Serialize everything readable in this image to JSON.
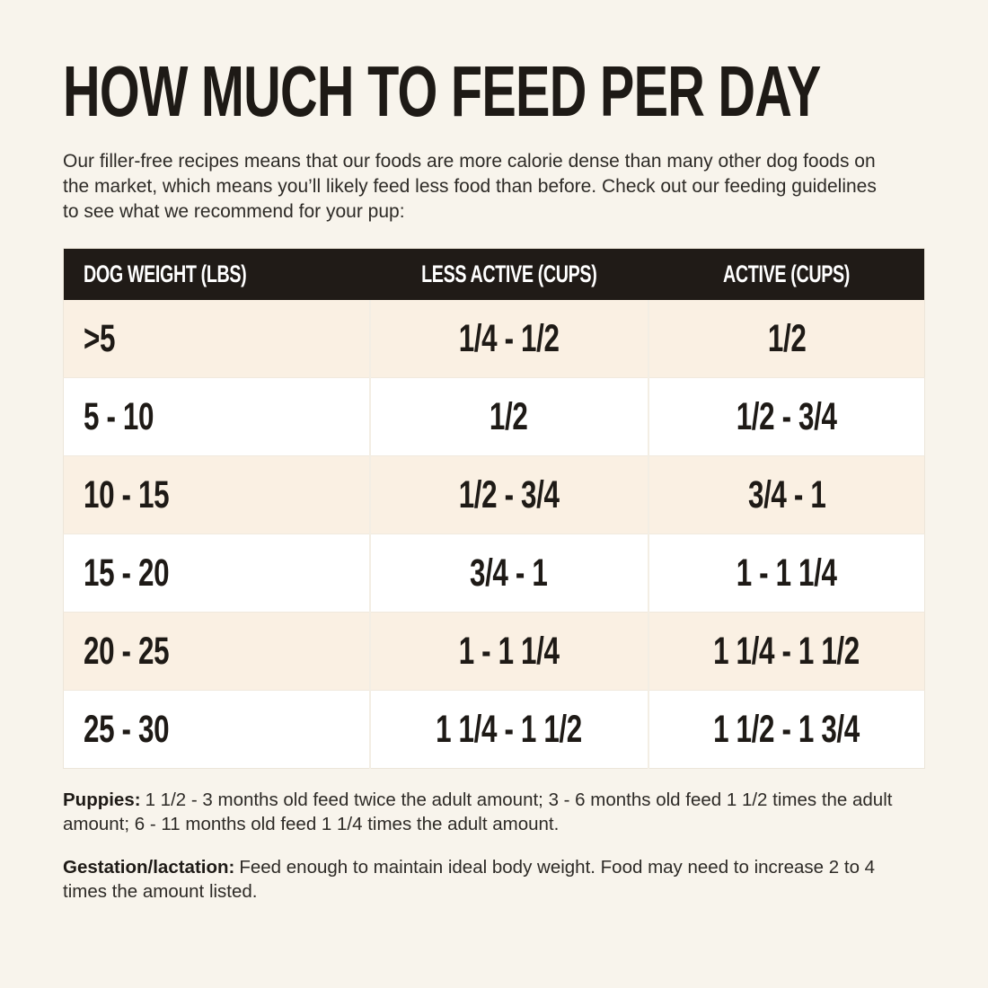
{
  "page": {
    "title": "HOW MUCH TO FEED PER DAY",
    "intro": "Our filler-free recipes means that our foods are more calorie dense than many other dog foods on the market, which means you’ll likely feed less food than before. Check out our feeding guidelines to see what we recommend for your pup:"
  },
  "table": {
    "headers": [
      "DOG WEIGHT (LBS)",
      "LESS ACTIVE (CUPS)",
      "ACTIVE (CUPS)"
    ],
    "rows": [
      [
        ">5",
        "1/4 - 1/2",
        "1/2"
      ],
      [
        "5 - 10",
        "1/2",
        "1/2 - 3/4"
      ],
      [
        "10 - 15",
        "1/2 - 3/4",
        "3/4 - 1"
      ],
      [
        "15 - 20",
        "3/4 - 1",
        "1 - 1 1/4"
      ],
      [
        "20 - 25",
        "1 - 1 1/4",
        "1 1/4 - 1 1/2"
      ],
      [
        "25 - 30",
        "1 1/4 - 1 1/2",
        "1 1/2 - 1 3/4"
      ]
    ]
  },
  "notes": [
    {
      "label": "Puppies:",
      "text": "1 1/2 - 3 months old feed twice the adult amount; 3 - 6 months old feed 1 1/2 times the adult amount; 6 - 11 months old feed 1 1/4 times the adult amount."
    },
    {
      "label": "Gestation/lactation:",
      "text": "Feed enough to maintain ideal body weight. Food may need to increase 2 to 4 times the amount listed."
    }
  ],
  "colors": {
    "page_background": "#f8f4ec",
    "header_background": "#201b17",
    "header_text": "#ffffff",
    "row_alt_background": "#faf0e3",
    "row_background": "#ffffff",
    "text": "#1e1a16"
  }
}
